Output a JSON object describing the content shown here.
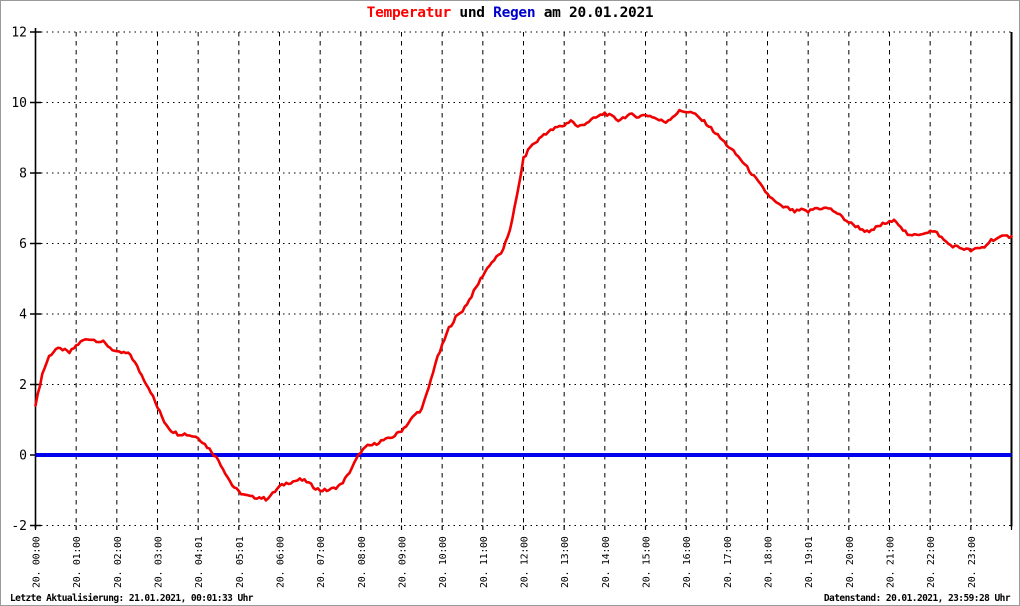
{
  "window": {
    "background": "#ffffff",
    "border_color": "#9a9a9a"
  },
  "title": {
    "part_temperature": "Temperatur",
    "part_und": " und ",
    "part_rain": "Regen",
    "part_date": " am 20.01.2021",
    "color_temperature": "#ff0000",
    "color_rain": "#0000cc",
    "color_text": "#000000"
  },
  "footer": {
    "left": "Letzte Aktualisierung: 21.01.2021, 00:01:33 Uhr",
    "right": "Datenstand: 20.01.2021, 23:59:28 Uhr"
  },
  "chart_data": {
    "type": "line",
    "title": "Temperatur und Regen am 20.01.2021",
    "xlabel": "",
    "ylabel": "",
    "ylim": [
      -2,
      12
    ],
    "xlim_hours": [
      0,
      24
    ],
    "y_ticks": [
      12,
      10,
      8,
      6,
      4,
      2,
      0,
      -2
    ],
    "x_tick_labels": [
      "20. 00:00",
      "20. 01:00",
      "20. 02:00",
      "20. 03:00",
      "20. 04:01",
      "20. 05:01",
      "20. 06:00",
      "20. 07:00",
      "20. 08:00",
      "20. 09:00",
      "20. 10:00",
      "20. 11:00",
      "20. 12:00",
      "20. 13:00",
      "20. 14:00",
      "20. 15:00",
      "20. 16:00",
      "20. 17:00",
      "20. 18:00",
      "20. 19:01",
      "20. 20:00",
      "20. 21:00",
      "20. 22:00",
      "20. 23:00"
    ],
    "grid": true,
    "grid_style": {
      "horizontal": "dotted",
      "vertical": "dashed",
      "color": "#000000"
    },
    "axis_color": "#000000",
    "legend_position": "none",
    "series": [
      {
        "name": "Temperatur",
        "color": "#f00000",
        "start_hour": 0,
        "interval_minutes": 10,
        "values": [
          1.4,
          2.3,
          2.8,
          3.0,
          3.0,
          2.9,
          3.1,
          3.25,
          3.3,
          3.25,
          3.2,
          3.05,
          2.9,
          2.9,
          2.85,
          2.5,
          2.15,
          1.8,
          1.35,
          0.95,
          0.7,
          0.6,
          0.6,
          0.55,
          0.5,
          0.3,
          0.1,
          -0.15,
          -0.5,
          -0.85,
          -1.05,
          -1.15,
          -1.2,
          -1.2,
          -1.25,
          -1.1,
          -0.9,
          -0.8,
          -0.75,
          -0.7,
          -0.75,
          -0.9,
          -1.0,
          -1.0,
          -0.95,
          -0.85,
          -0.6,
          -0.25,
          0.1,
          0.25,
          0.3,
          0.4,
          0.45,
          0.55,
          0.7,
          0.9,
          1.15,
          1.3,
          1.9,
          2.6,
          3.1,
          3.6,
          3.9,
          4.1,
          4.4,
          4.75,
          5.1,
          5.4,
          5.6,
          5.8,
          6.4,
          7.3,
          8.4,
          8.75,
          8.9,
          9.1,
          9.2,
          9.3,
          9.35,
          9.5,
          9.3,
          9.4,
          9.5,
          9.6,
          9.7,
          9.6,
          9.5,
          9.6,
          9.65,
          9.6,
          9.65,
          9.6,
          9.5,
          9.45,
          9.6,
          9.75,
          9.75,
          9.7,
          9.55,
          9.4,
          9.2,
          9.0,
          8.8,
          8.6,
          8.4,
          8.15,
          7.9,
          7.65,
          7.4,
          7.2,
          7.05,
          7.0,
          6.9,
          6.95,
          6.9,
          7.0,
          7.0,
          7.0,
          6.9,
          6.75,
          6.6,
          6.5,
          6.4,
          6.3,
          6.45,
          6.55,
          6.6,
          6.65,
          6.4,
          6.2,
          6.25,
          6.3,
          6.35,
          6.3,
          6.1,
          5.95,
          5.9,
          5.85,
          5.8,
          5.85,
          5.9,
          6.1,
          6.15,
          6.2,
          6.2
        ]
      },
      {
        "name": "Regen",
        "color": "#0000ee",
        "constant_value": 0
      }
    ]
  }
}
